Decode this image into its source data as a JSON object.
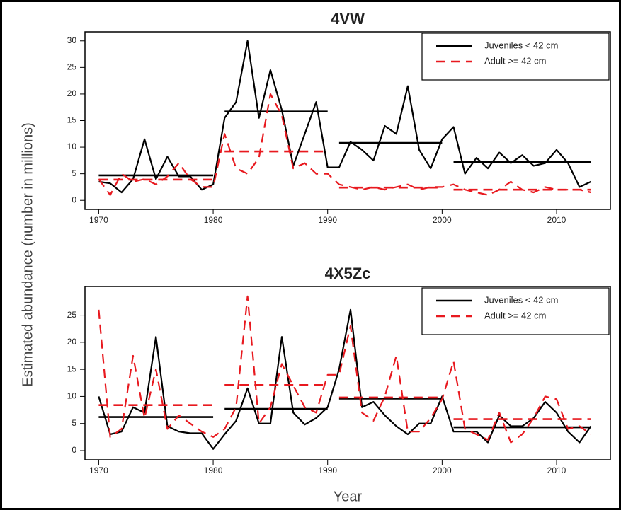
{
  "chart_data": [
    {
      "type": "line",
      "title": "4VW",
      "ylabel": "Estimated abundance (number in millions)",
      "x": [
        1970,
        1971,
        1972,
        1973,
        1974,
        1975,
        1976,
        1977,
        1978,
        1979,
        1980,
        1981,
        1982,
        1983,
        1984,
        1985,
        1986,
        1987,
        1988,
        1989,
        1990,
        1991,
        1992,
        1993,
        1994,
        1995,
        1996,
        1997,
        1998,
        1999,
        2000,
        2001,
        2002,
        2003,
        2004,
        2005,
        2006,
        2007,
        2008,
        2009,
        2010,
        2011,
        2012,
        2013
      ],
      "xlim": [
        1968.8,
        2014.7
      ],
      "xticks": [
        1970,
        1980,
        1990,
        2000,
        2010
      ],
      "ylim": [
        -1.7,
        31.7
      ],
      "yticks": [
        0,
        5,
        10,
        15,
        20,
        25,
        30
      ],
      "legend": "top-right",
      "series": [
        {
          "name": "Juveniles < 42 cm",
          "color": "#000000",
          "dashed": false,
          "values": [
            3.5,
            3.2,
            1.5,
            4,
            11.5,
            4,
            8.2,
            4.5,
            4.5,
            2,
            3,
            15.5,
            18.5,
            30,
            15.5,
            24.5,
            17,
            6.5,
            12.5,
            18.5,
            6.2,
            6.2,
            11,
            9.5,
            7.5,
            14,
            12.5,
            21.5,
            9.5,
            6,
            11.5,
            13.8,
            5,
            8,
            6,
            9,
            7,
            8.5,
            6.5,
            7,
            9.5,
            7,
            2.5,
            3.5
          ],
          "segments": [
            {
              "x": [
                1970,
                1980
              ],
              "value": 4.7
            },
            {
              "x": [
                1981,
                1990
              ],
              "value": 16.7
            },
            {
              "x": [
                1991,
                2000
              ],
              "value": 10.8
            },
            {
              "x": [
                2001,
                2013
              ],
              "value": 7.2
            }
          ]
        },
        {
          "name": "Adult >= 42 cm",
          "color": "#e8191f",
          "dashed": true,
          "values": [
            4,
            1,
            5,
            3.5,
            4,
            3,
            4.5,
            7,
            4,
            2.5,
            2.5,
            12.5,
            6,
            5,
            8,
            20,
            16,
            6,
            7,
            5,
            5,
            3,
            2.5,
            2,
            2.5,
            2,
            2.5,
            3,
            2,
            2.5,
            2.5,
            3,
            2,
            1.5,
            1,
            2,
            3.5,
            2,
            1.5,
            2.5,
            2,
            2,
            2,
            1.5
          ],
          "segments": [
            {
              "x": [
                1970,
                1980
              ],
              "value": 3.9
            },
            {
              "x": [
                1981,
                1990
              ],
              "value": 9.2
            },
            {
              "x": [
                1991,
                2000
              ],
              "value": 2.4
            },
            {
              "x": [
                2001,
                2013
              ],
              "value": 2.0
            }
          ]
        }
      ]
    },
    {
      "type": "line",
      "title": "4X5Zc",
      "xlabel": "Year",
      "x": [
        1970,
        1971,
        1972,
        1973,
        1974,
        1975,
        1976,
        1977,
        1978,
        1979,
        1980,
        1981,
        1982,
        1983,
        1984,
        1985,
        1986,
        1987,
        1988,
        1989,
        1990,
        1991,
        1992,
        1993,
        1994,
        1995,
        1996,
        1997,
        1998,
        1999,
        2000,
        2001,
        2002,
        2003,
        2004,
        2005,
        2006,
        2007,
        2008,
        2009,
        2010,
        2011,
        2012,
        2013
      ],
      "xlim": [
        1968.8,
        2014.7
      ],
      "xticks": [
        1970,
        1980,
        1990,
        2000,
        2010
      ],
      "ylim": [
        -1.7,
        30.3
      ],
      "yticks": [
        0,
        5,
        10,
        15,
        20,
        25
      ],
      "legend": "top-right",
      "series": [
        {
          "name": "Juveniles < 42 cm",
          "color": "#000000",
          "dashed": false,
          "values": [
            10,
            3,
            3.5,
            8,
            7,
            21,
            4.5,
            3.5,
            3.2,
            3.2,
            0.3,
            3,
            5.5,
            11.5,
            5,
            5,
            21,
            7,
            4.8,
            6,
            8,
            15,
            26,
            8,
            9,
            6.5,
            4.5,
            3,
            5,
            5,
            10,
            3.5,
            3.5,
            3.5,
            1.5,
            6.5,
            4.5,
            4.5,
            6,
            9,
            7,
            3.5,
            1.5,
            4.5
          ],
          "segments": [
            {
              "x": [
                1970,
                1980
              ],
              "value": 6.2
            },
            {
              "x": [
                1981,
                1990
              ],
              "value": 7.7
            },
            {
              "x": [
                1991,
                2000
              ],
              "value": 9.6
            },
            {
              "x": [
                2001,
                2013
              ],
              "value": 4.3
            }
          ]
        },
        {
          "name": "Adult >= 42 cm",
          "color": "#e8191f",
          "dashed": true,
          "values": [
            26,
            2.5,
            4,
            17.5,
            6,
            15,
            4,
            6.5,
            5,
            3.5,
            2.5,
            4,
            8,
            28.5,
            5,
            8,
            16,
            12,
            8,
            7,
            14,
            14,
            23,
            7,
            5.5,
            10,
            17.5,
            3.5,
            3.5,
            6,
            9.5,
            16.5,
            4,
            3,
            2,
            7,
            1.5,
            3,
            6,
            10,
            9.5,
            4,
            4.5,
            3
          ],
          "segments": [
            {
              "x": [
                1970,
                1980
              ],
              "value": 8.4
            },
            {
              "x": [
                1981,
                1990
              ],
              "value": 12.1
            },
            {
              "x": [
                1991,
                2000
              ],
              "value": 9.8
            },
            {
              "x": [
                2001,
                2013
              ],
              "value": 5.8
            }
          ]
        }
      ]
    }
  ]
}
